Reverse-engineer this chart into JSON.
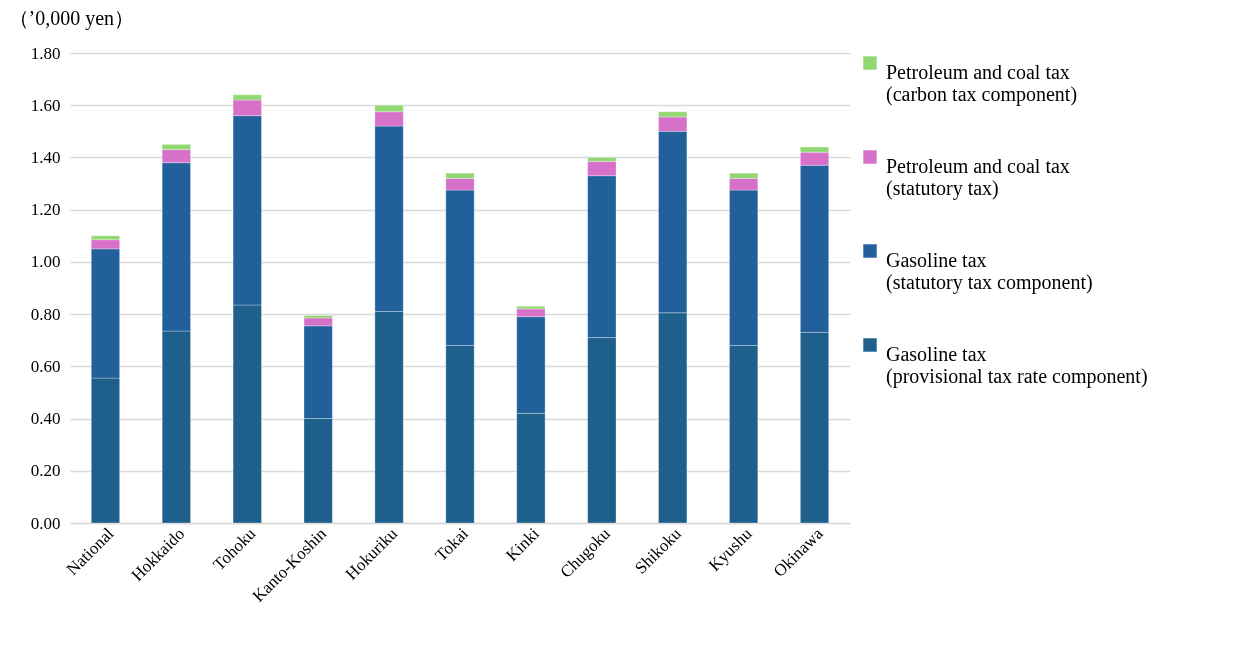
{
  "chart_data": {
    "type": "bar",
    "stacked": true,
    "ylabel": "（’0,000 yen）",
    "categories": [
      "National",
      "Hokkaido",
      "Tohoku",
      "Kanto-Koshin",
      "Hokuriku",
      "Tokai",
      "Kinki",
      "Chugoku",
      "Shikoku",
      "Kyushu",
      "Okinawa"
    ],
    "series": [
      {
        "name": "Gasoline tax (provisional tax rate component)",
        "color": "#1f5f8b",
        "values": [
          0.555,
          0.735,
          0.835,
          0.4,
          0.81,
          0.68,
          0.42,
          0.71,
          0.805,
          0.68,
          0.73
        ]
      },
      {
        "name": "Gasoline tax (statutory tax component)",
        "color": "#21609b",
        "values": [
          0.495,
          0.645,
          0.725,
          0.355,
          0.71,
          0.595,
          0.37,
          0.62,
          0.695,
          0.595,
          0.64
        ]
      },
      {
        "name": "Petroleum and coal tax (statutory tax)",
        "color": "#d670c8",
        "values": [
          0.035,
          0.05,
          0.06,
          0.03,
          0.055,
          0.045,
          0.03,
          0.055,
          0.055,
          0.045,
          0.05
        ]
      },
      {
        "name": "Petroleum and coal tax (carbon tax component)",
        "color": "#92d872",
        "values": [
          0.015,
          0.02,
          0.02,
          0.01,
          0.025,
          0.02,
          0.01,
          0.015,
          0.02,
          0.02,
          0.02
        ]
      }
    ],
    "ylim": [
      0,
      1.8
    ],
    "yticks": [
      {
        "value": 0,
        "label": "0.00"
      },
      {
        "value": 0.2,
        "label": "0.20"
      },
      {
        "value": 0.4,
        "label": "0.40"
      },
      {
        "value": 0.6,
        "label": "0.60"
      },
      {
        "value": 0.8,
        "label": "0.80"
      },
      {
        "value": 1.0,
        "label": "1.00"
      },
      {
        "value": 1.2,
        "label": "1.20"
      },
      {
        "value": 1.4,
        "label": "1.40"
      },
      {
        "value": 1.6,
        "label": "1.60"
      },
      {
        "value": 1.8,
        "label": "1.80"
      }
    ],
    "grid": "y",
    "legend": "right"
  }
}
